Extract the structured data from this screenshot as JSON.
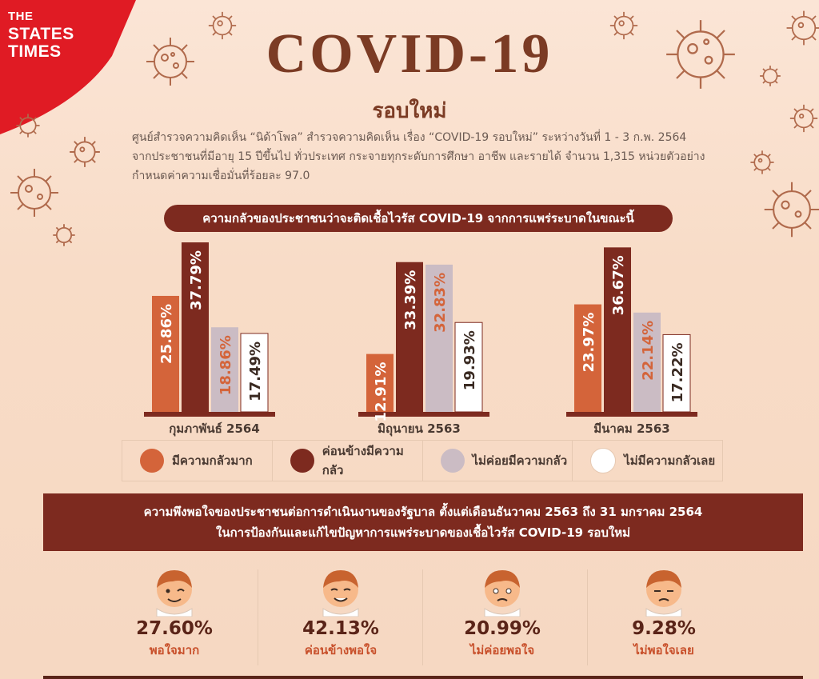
{
  "brand": {
    "line1": "THE",
    "line2": "STATES",
    "line3": "TIMES",
    "color": "#e01b24"
  },
  "title": "COVID-19",
  "subtitle": "รอบใหม่",
  "description": [
    "ศูนย์สำรวจความคิดเห็น “นิด้าโพล” สำรวจความคิดเห็น เรื่อง “COVID-19 รอบใหม่” ระหว่างวันที่ 1 - 3 ก.พ. 2564",
    "จากประชาชนที่มีอายุ  15  ปีขึ้นไป ทั่วประเทศ กระจายทุกระดับการศึกษา  อาชีพ  และรายได้ จำนวน 1,315 หน่วยตัวอย่าง",
    "กำหนดค่าความเชื่อมั่นที่ร้อยละ 97.0"
  ],
  "colors": {
    "very_afraid": "#d4643a",
    "quite_afraid": "#7d2a1f",
    "not_very_afraid": "#cbbcc4",
    "not_afraid": "#ffffff",
    "banner": "#7d2a1f",
    "virus": "#b06a4c"
  },
  "chart_data": {
    "type": "bar",
    "title": "ความกลัวของประชาชนว่าจะติดเชื้อไวรัส COVID-19 จากการแพร่ระบาดในขณะนี้",
    "categories": [
      "กุมภาพันธ์ 2564",
      "มิถุนายน 2563",
      "มีนาคม 2563"
    ],
    "series": [
      {
        "name": "มีความกลัวมาก",
        "values": [
          25.86,
          12.91,
          23.97
        ],
        "labels": [
          "25.86%",
          "12.91%",
          "23.97%"
        ]
      },
      {
        "name": "ค่อนข้างมีความกลัว",
        "values": [
          37.79,
          33.39,
          36.67
        ],
        "labels": [
          "37.79%",
          "33.39%",
          "36.67%"
        ]
      },
      {
        "name": "ไม่ค่อยมีความกลัว",
        "values": [
          18.86,
          32.83,
          22.14
        ],
        "labels": [
          "18.86%",
          "32.83%",
          "22.14%"
        ]
      },
      {
        "name": "ไม่มีความกลัวเลย",
        "values": [
          17.49,
          19.93,
          17.22
        ],
        "labels": [
          "17.49%",
          "19.93%",
          "17.22%"
        ]
      }
    ],
    "unit": "%",
    "ylim": [
      0,
      40
    ]
  },
  "satisfaction": {
    "title_line1": "ความพึงพอใจของประชาชนต่อการดำเนินงานของรัฐบาล ตั้งแต่เดือนธันวาคม 2563 ถึง 31 มกราคม 2564",
    "title_line2": "ในการป้องกันและแก้ไขปัญหาการแพร่ระบาดของเชื้อไวรัส COVID-19 รอบใหม่",
    "items": [
      {
        "value": "27.60%",
        "label": "พอใจมาก",
        "face": "wink-face-icon"
      },
      {
        "value": "42.13%",
        "label": "ค่อนข้างพอใจ",
        "face": "smile-face-icon"
      },
      {
        "value": "20.99%",
        "label": "ไม่ค่อยพอใจ",
        "face": "worried-face-icon"
      },
      {
        "value": "9.28%",
        "label": "ไม่พอใจเลย",
        "face": "sad-face-icon"
      }
    ]
  }
}
